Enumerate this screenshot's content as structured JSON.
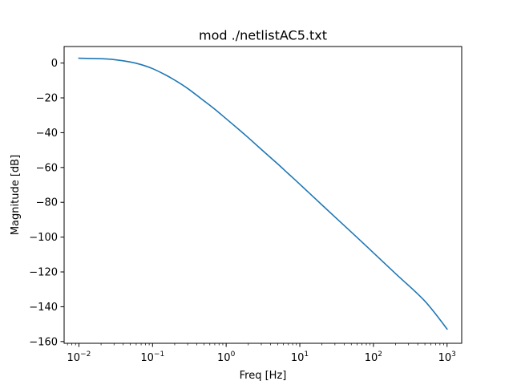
{
  "figure": {
    "title": "mod ./netlistAC5.txt",
    "xlabel": "Freq [Hz]",
    "ylabel": "Magnitude [dB]"
  },
  "chart_data": {
    "type": "line",
    "title": "mod ./netlistAC5.txt",
    "xlabel": "Freq [Hz]",
    "ylabel": "Magnitude [dB]",
    "xscale": "log",
    "xlim": [
      0.0063,
      1580
    ],
    "ylim": [
      -161,
      9.5
    ],
    "grid": false,
    "x_ticks": [
      {
        "value": 0.01,
        "base": "10",
        "exp": "−2"
      },
      {
        "value": 0.1,
        "base": "10",
        "exp": "−1"
      },
      {
        "value": 1,
        "base": "10",
        "exp": "0"
      },
      {
        "value": 10,
        "base": "10",
        "exp": "1"
      },
      {
        "value": 100,
        "base": "10",
        "exp": "2"
      },
      {
        "value": 1000,
        "base": "10",
        "exp": "3"
      }
    ],
    "y_ticks": [
      {
        "value": 0,
        "label": "0"
      },
      {
        "value": -20,
        "label": "−20"
      },
      {
        "value": -40,
        "label": "−40"
      },
      {
        "value": -60,
        "label": "−60"
      },
      {
        "value": -80,
        "label": "−80"
      },
      {
        "value": -100,
        "label": "−100"
      },
      {
        "value": -120,
        "label": "−120"
      },
      {
        "value": -140,
        "label": "−140"
      },
      {
        "value": -160,
        "label": "−160"
      }
    ],
    "series": [
      {
        "color": "#1f77b4",
        "x": [
          0.01,
          0.02,
          0.03,
          0.05,
          0.07,
          0.1,
          0.15,
          0.2,
          0.3,
          0.5,
          0.7,
          1,
          1.5,
          2,
          3,
          5,
          7,
          10,
          20,
          50,
          100,
          200,
          500,
          1000
        ],
        "y": [
          2.8,
          2.5,
          2.0,
          0.6,
          -0.9,
          -3.2,
          -6.8,
          -9.8,
          -14.6,
          -21.7,
          -26.5,
          -32.0,
          -38.3,
          -42.9,
          -49.6,
          -57.9,
          -63.6,
          -69.6,
          -81.5,
          -97.1,
          -109.0,
          -121.0,
          -136.8,
          -152.8
        ]
      }
    ]
  }
}
